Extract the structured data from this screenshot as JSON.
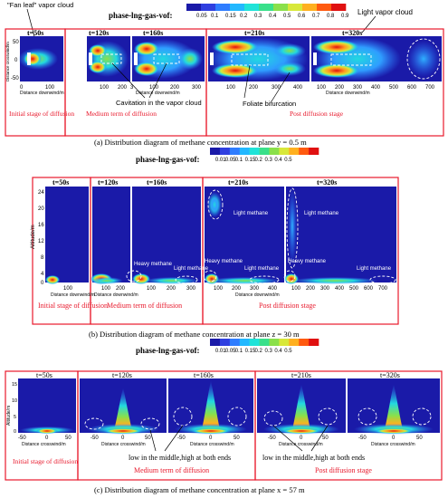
{
  "colors": {
    "frame": "#e8192c",
    "red_text": "#e8192c",
    "jet": [
      "#1a1aa8",
      "#2f3fe0",
      "#2f7dff",
      "#22b8ff",
      "#1fe3d8",
      "#39e08a",
      "#8ae04a",
      "#d8e83a",
      "#ffb020",
      "#ff5a10",
      "#e01010"
    ]
  },
  "panel_a": {
    "legend_label": "phase-lng-gas-vof:",
    "legend_ticks": [
      "0.05",
      "0.1",
      "0.15",
      "0.2",
      "0.3",
      "0.4",
      "0.5",
      "0.6",
      "0.7",
      "0.8",
      "0.9"
    ],
    "annotation_fan_leaf": "\"Fan leaf\" vapor cloud",
    "annotation_light_cloud": "Light vapor cloud",
    "annotation_cavitation": "Cavitation in the vapor cloud",
    "annotation_foliate": "Foliate bifurcation",
    "times": [
      "t=50s",
      "t=120s",
      "t=160s",
      "t=210s",
      "t=320s"
    ],
    "ylabel": "Distance crosswind/m",
    "xlabel": "Distance downwind/m",
    "yticks": [
      "50",
      "0",
      "-50"
    ],
    "xticks_1": [
      "0",
      "100"
    ],
    "xticks_2": [
      "100",
      "200",
      "3"
    ],
    "xticks_3": [
      "100",
      "200",
      "300"
    ],
    "xticks_4": [
      "100",
      "200",
      "300",
      "400"
    ],
    "xticks_5": [
      "100",
      "200",
      "300",
      "400",
      "500",
      "600",
      "700"
    ],
    "stage_initial": "Initial stage of diffusion",
    "stage_medium": "Medium term of diffusion",
    "stage_post": "Post diffusion stage",
    "caption": "(a) Distribution diagram of methane concentration at plane y = 0.5 m"
  },
  "panel_b": {
    "legend_label": "phase-lng-gas-vof:",
    "legend_ticks": [
      "0.01",
      "0.05",
      "0.1",
      "0.15",
      "0.2",
      "0.3",
      "0.4",
      "0.5"
    ],
    "times": [
      "t=50s",
      "t=120s",
      "t=160s",
      "t=210s",
      "t=320s"
    ],
    "ylabel": "Altitude/m",
    "yticks": [
      "24",
      "20",
      "16",
      "12",
      "8",
      "4",
      "0"
    ],
    "xlabel": "Distance downwind/m",
    "xticks_1": [
      "100"
    ],
    "xticks_2": [
      "100",
      "200"
    ],
    "xticks_3": [
      "100",
      "200",
      "300"
    ],
    "xticks_4": [
      "100",
      "200",
      "300",
      "400"
    ],
    "xticks_5": [
      "100",
      "200",
      "300",
      "400",
      "500",
      "600",
      "700"
    ],
    "heavy": "Heavy methane",
    "light": "Light methane",
    "stage_initial": "Initial stage of diffusion",
    "stage_medium": "Medium term of diffusion",
    "stage_post": "Post diffusion stage",
    "caption": "(b) Distribution diagram of methane concentration at plane z = 30 m"
  },
  "panel_c": {
    "legend_label": "phase-lng-gas-vof:",
    "legend_ticks": [
      "0.01",
      "0.05",
      "0.1",
      "0.15",
      "0.2",
      "0.3",
      "0.4",
      "0.5"
    ],
    "times": [
      "t=50s",
      "t=120s",
      "t=160s",
      "t=210s",
      "t=320s"
    ],
    "ylabel": "Altitude/m",
    "yticks": [
      "15",
      "10",
      "5",
      "0"
    ],
    "xlabel": "Distance crosswind/m",
    "xticks": [
      "-50",
      "0",
      "50"
    ],
    "annotation_low_high": "low in the middle,high at both ends",
    "stage_initial": "Initial stage of diffusion",
    "stage_medium": "Medium term of diffusion",
    "stage_post": "Post diffusion stage",
    "caption": "(c) Distribution diagram of methane concentration at plane x = 57 m"
  }
}
